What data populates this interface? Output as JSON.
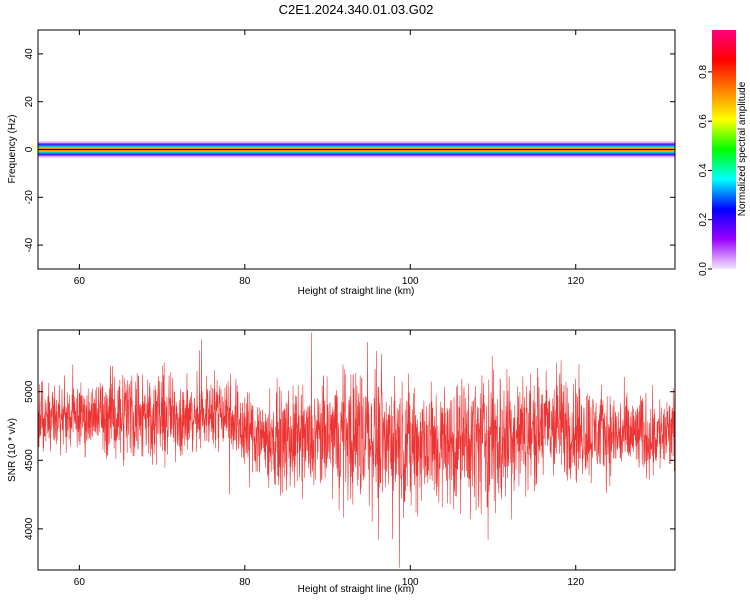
{
  "title": "C2E1.2024.340.01.03.G02",
  "chart_data": [
    {
      "type": "heatmap",
      "xlabel": "Height of straight line (km)",
      "ylabel": "Frequency (Hz)",
      "xlim": [
        55,
        132
      ],
      "ylim": [
        -50,
        50
      ],
      "xticks": [
        60,
        80,
        100,
        120
      ],
      "yticks": [
        40,
        20,
        0,
        -20,
        -40
      ],
      "xtick_labels": [
        "60",
        "80",
        "100",
        "120"
      ],
      "ytick_labels": [
        "40",
        "20",
        "0",
        "-20",
        "-40"
      ],
      "bands": [
        {
          "level": 0.05,
          "half_width_hz": 3.5,
          "color": "#e6ccff"
        },
        {
          "level": 0.12,
          "half_width_hz": 2.8,
          "color": "#a040ff"
        },
        {
          "level": 0.2,
          "half_width_hz": 2.2,
          "color": "#2020ff"
        },
        {
          "level": 0.35,
          "half_width_hz": 1.7,
          "color": "#00b8ff"
        },
        {
          "level": 0.5,
          "half_width_hz": 1.2,
          "color": "#30e040"
        },
        {
          "level": 0.65,
          "half_width_hz": 0.8,
          "color": "#e8e800"
        },
        {
          "level": 0.8,
          "half_width_hz": 0.5,
          "color": "#ff8000"
        },
        {
          "level": 0.95,
          "half_width_hz": 0.25,
          "color": "#ff0020"
        }
      ],
      "colorbar": {
        "label": "Normalized spectral amplitude",
        "range": [
          0.0,
          0.97
        ],
        "ticks": [
          0.0,
          0.2,
          0.4,
          0.6,
          0.8
        ],
        "tick_labels": [
          "0.0",
          "0.2",
          "0.4",
          "0.6",
          "0.8"
        ],
        "colors": [
          "#f5e6ff",
          "#9a00ff",
          "#0000ff",
          "#00ffff",
          "#00ff00",
          "#ffff00",
          "#ff8000",
          "#ff0000",
          "#ff0080"
        ]
      }
    },
    {
      "type": "line",
      "xlabel": "Height of straight line (km)",
      "ylabel": "SNR (10 * v/v)",
      "xlim": [
        55,
        132
      ],
      "ylim": [
        3700,
        5450
      ],
      "xticks": [
        60,
        80,
        100,
        120
      ],
      "yticks": [
        5000,
        4500,
        4000
      ],
      "xtick_labels": [
        "60",
        "80",
        "100",
        "120"
      ],
      "ytick_labels": [
        "5000",
        "4500",
        "4000"
      ],
      "color": "#ee3333",
      "trend": {
        "x": [
          55,
          60,
          64,
          66,
          70,
          74,
          76,
          78,
          80,
          84,
          88,
          92,
          96,
          100,
          104,
          108,
          110,
          114,
          118,
          122,
          126,
          130,
          132
        ],
        "y": [
          4800,
          4820,
          4830,
          4850,
          4830,
          4800,
          4870,
          4860,
          4720,
          4640,
          4640,
          4700,
          4680,
          4620,
          4600,
          4650,
          4640,
          4700,
          4760,
          4700,
          4680,
          4690,
          4700
        ]
      },
      "amplitude": {
        "x": [
          55,
          62,
          66,
          75,
          80,
          90,
          94,
          98,
          102,
          106,
          110,
          114,
          118,
          124,
          132
        ],
        "y": [
          150,
          180,
          260,
          180,
          220,
          280,
          380,
          300,
          340,
          300,
          420,
          280,
          300,
          220,
          200
        ]
      }
    }
  ]
}
